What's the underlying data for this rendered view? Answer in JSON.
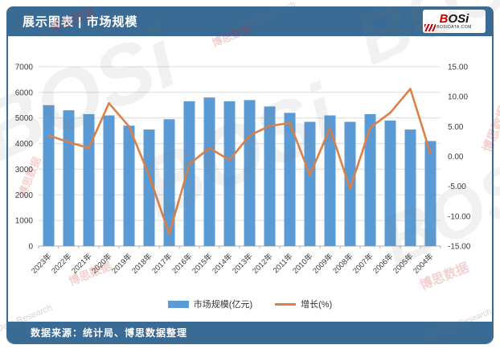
{
  "header": {
    "title": "展示图表 | 市场规模",
    "logo": {
      "b": "B",
      "osi": "OSi",
      "domain": "BOSIDATA.COM"
    }
  },
  "footer": {
    "source": "数据来源：统计局、博思数据整理"
  },
  "watermark": {
    "brand": "BOSi",
    "cn": "博思数据",
    "en": "BosiData Research",
    "en2": "Data Research"
  },
  "colors": {
    "header_bg": "#3A6B94",
    "bar": "#5B9BD5",
    "line": "#DD8047",
    "grid": "#DCDCDC",
    "axis_line": "#ADADAD",
    "axis_text": "#3A3A3A"
  },
  "chart_data": {
    "type": "bar",
    "subtype": "combo-bar-line-dual-axis",
    "categories": [
      "2023年",
      "2022年",
      "2021年",
      "2020年",
      "2019年",
      "2018年",
      "2017年",
      "2016年",
      "2015年",
      "2014年",
      "2013年",
      "2012年",
      "2011年",
      "2010年",
      "2009年",
      "2008年",
      "2007年",
      "2006年",
      "2005年",
      "2004年"
    ],
    "series": [
      {
        "name": "市场规模(亿元)",
        "type": "bar",
        "axis": "left",
        "color": "#5B9BD5",
        "values": [
          5500,
          5300,
          5150,
          5100,
          4700,
          4550,
          4950,
          5650,
          5800,
          5650,
          5700,
          5450,
          5200,
          4850,
          5100,
          4850,
          5150,
          4900,
          4550,
          4100
        ]
      },
      {
        "name": "增长(%)",
        "type": "line",
        "axis": "right",
        "color": "#DD8047",
        "values": [
          3.5,
          2.4,
          1.4,
          8.9,
          5.0,
          -3.2,
          -13.0,
          -1.3,
          1.4,
          -0.6,
          3.5,
          5.1,
          5.6,
          -3.1,
          4.7,
          -5.4,
          4.8,
          7.3,
          11.3,
          0.5
        ]
      }
    ],
    "left_axis": {
      "min": 0,
      "max": 7000,
      "step": 1000
    },
    "right_axis": {
      "min": -15,
      "max": 15,
      "step": 5,
      "decimals": 2
    },
    "grid": true,
    "legend_position": "bottom",
    "title": "市场规模"
  }
}
